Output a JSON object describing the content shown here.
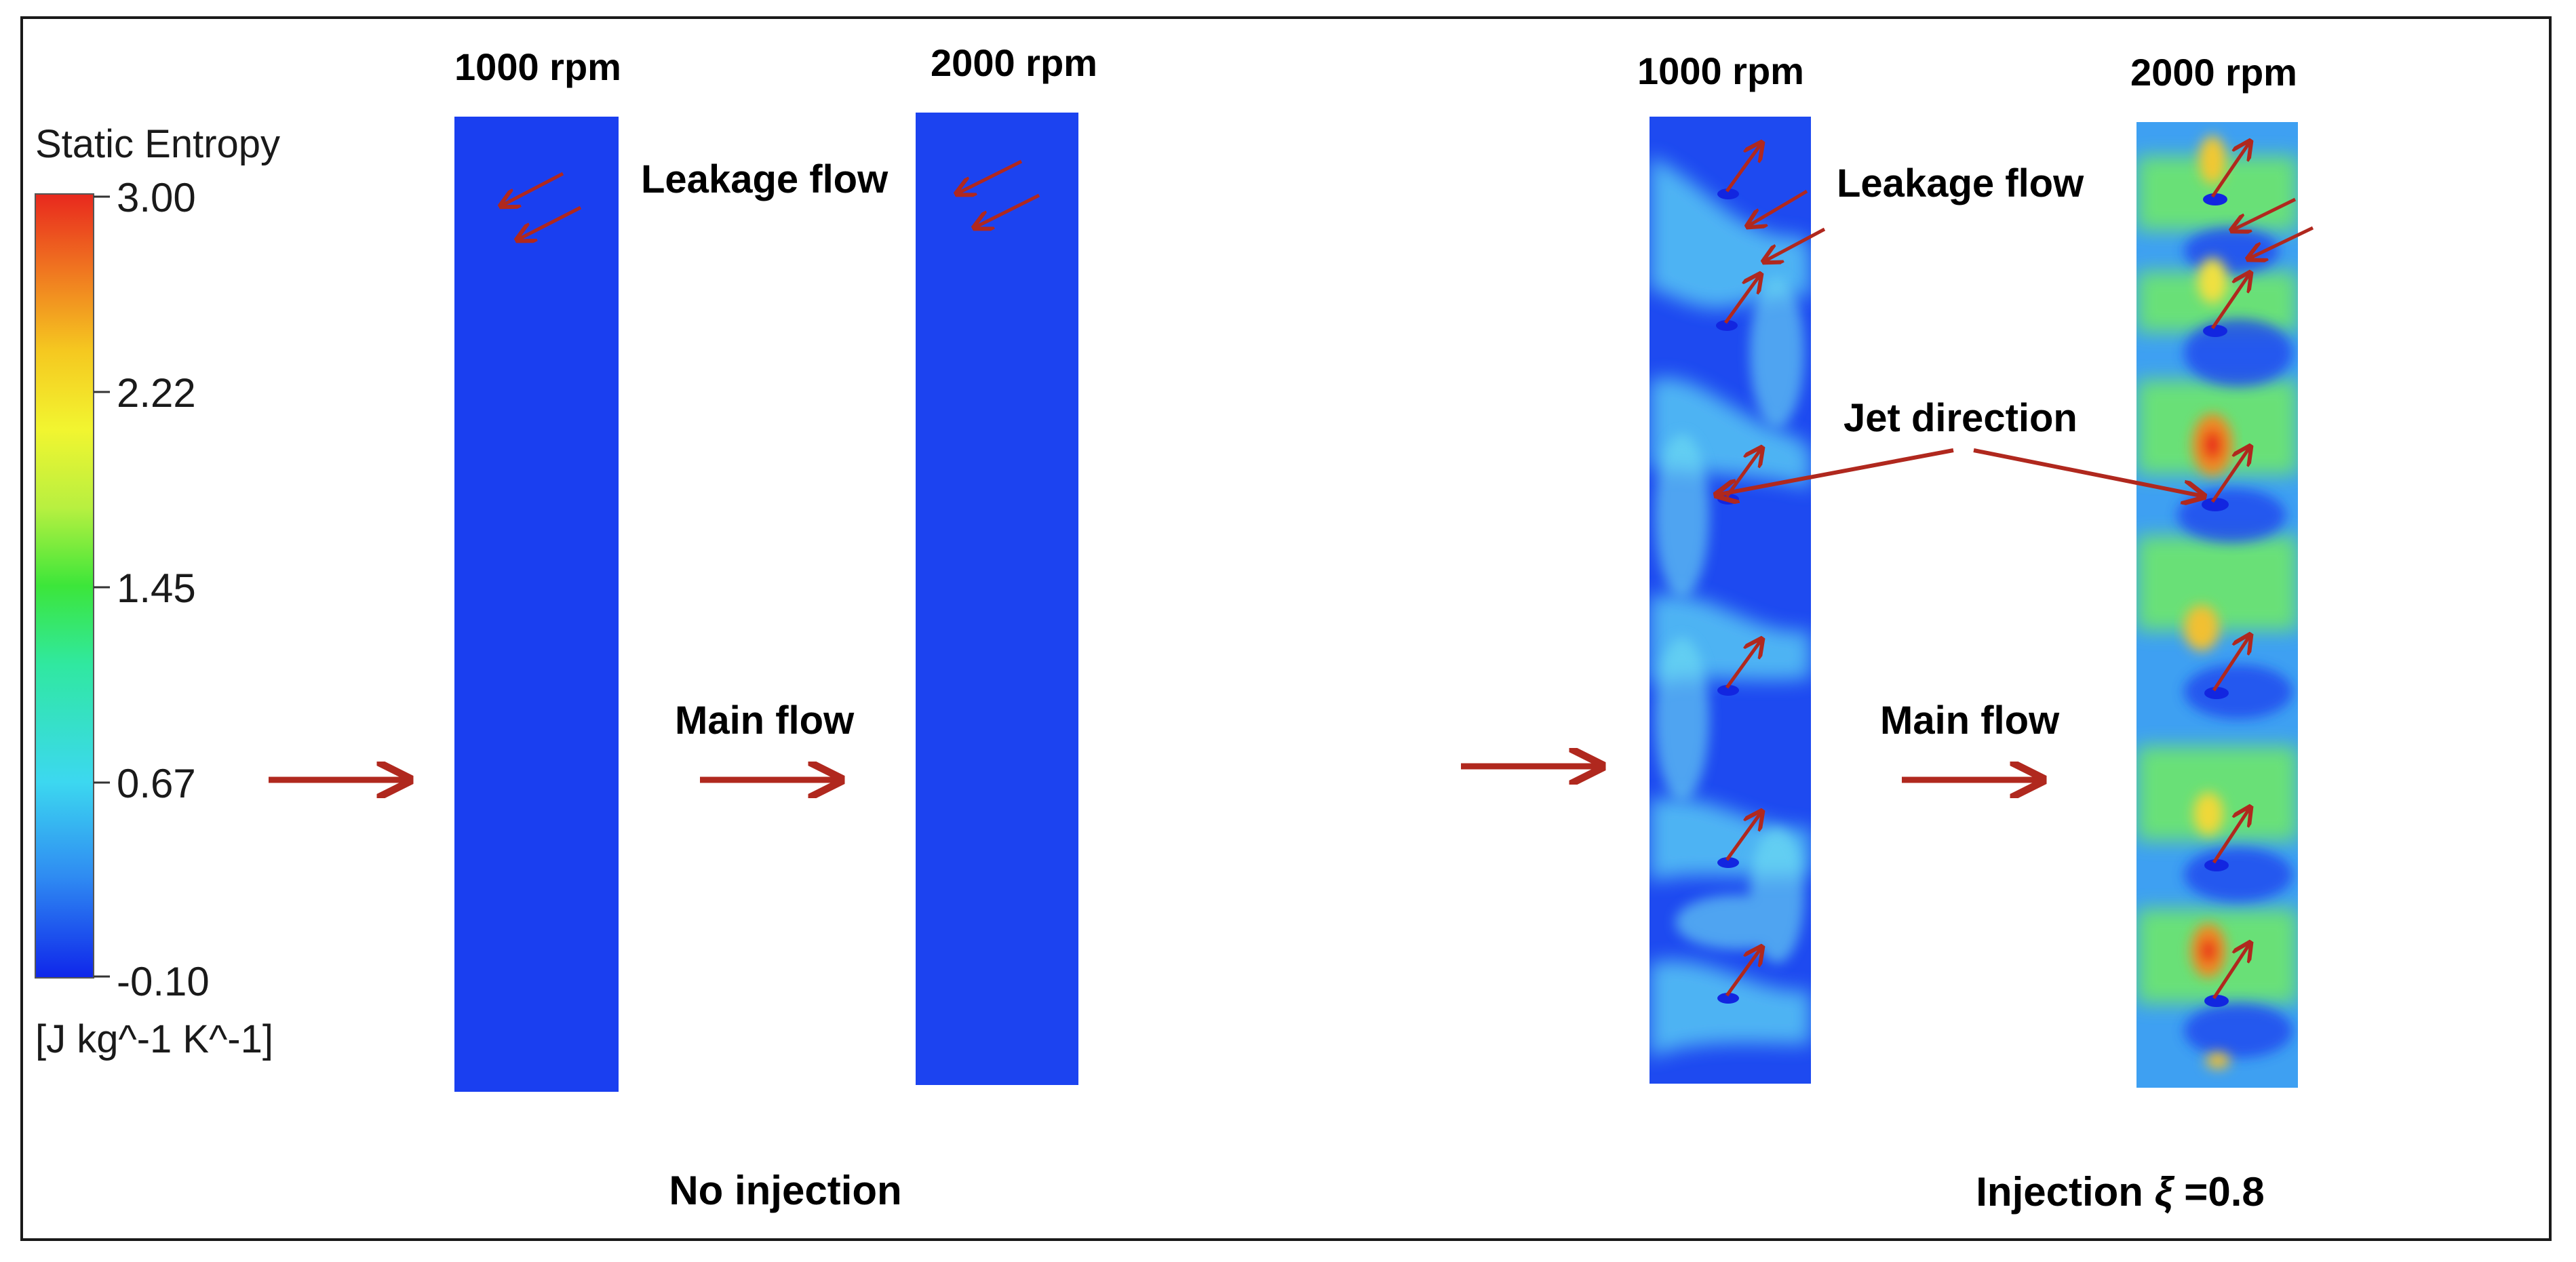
{
  "legend": {
    "title": "Static Entropy",
    "ticks": [
      "3.00",
      "2.22",
      "1.45",
      "0.67",
      "-0.10"
    ],
    "unit": "[J kg^-1 K^-1]",
    "colormap": [
      "#e8281e",
      "#f07820",
      "#f5c820",
      "#f2f530",
      "#b8f040",
      "#3ce63a",
      "#30e8a0",
      "#3cd8f0",
      "#2f8cf2",
      "#1a3ff0",
      "#0f26ea"
    ]
  },
  "panels": {
    "no_injection": {
      "speed_1": "1000 rpm",
      "speed_2": "2000 rpm",
      "leakage_label": "Leakage flow",
      "main_flow_label": "Main flow",
      "caption": "No injection"
    },
    "injection": {
      "speed_1": "1000 rpm",
      "speed_2": "2000 rpm",
      "leakage_label": "Leakage flow",
      "jet_label": "Jet direction",
      "main_flow_label": "Main flow",
      "caption_prefix": "Injection ",
      "caption_symbol": "ξ",
      "caption_suffix": " =0.8"
    }
  },
  "colors": {
    "arrow": "#b0281e",
    "base_blue": "#1a3ff0",
    "frame": "#1a1a1a"
  }
}
